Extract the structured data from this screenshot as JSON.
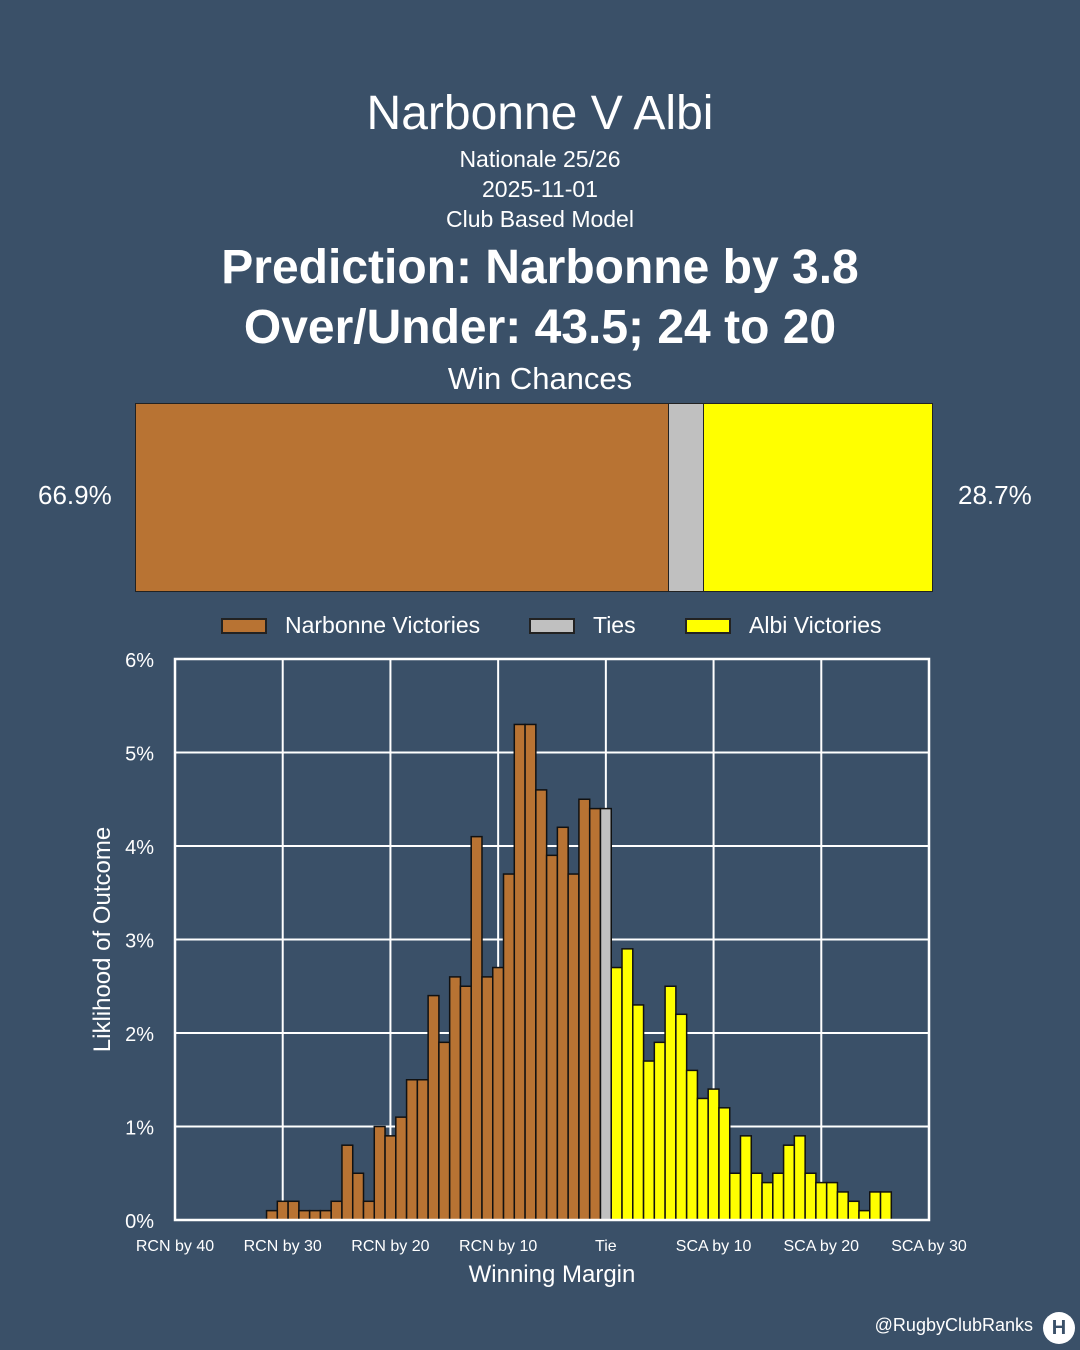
{
  "header": {
    "title": "Narbonne V Albi",
    "competition": "Nationale 25/26",
    "date": "2025-11-01",
    "model": "Club Based Model",
    "prediction": "Prediction: Narbonne by 3.8",
    "over_under": "Over/Under: 43.5; 24 to 20"
  },
  "win_chances": {
    "title": "Win Chances",
    "home_label": "66.9%",
    "away_label": "28.7%",
    "home": 66.9,
    "tie": 4.4,
    "away": 28.7
  },
  "legend": {
    "home": "Narbonne Victories",
    "tie": "Ties",
    "away": "Albi Victories"
  },
  "colors": {
    "background": "#3a5068",
    "home": "#b87333",
    "tie": "#c0c0c0",
    "away": "#ffff00"
  },
  "chart_data": {
    "type": "bar",
    "xlabel": "Winning Margin",
    "ylabel": "Liklihood of Outcome",
    "xlim": [
      -40,
      30
    ],
    "ylim": [
      0,
      6
    ],
    "x_ticks": [
      {
        "value": -40,
        "label": "RCN by 40"
      },
      {
        "value": -30,
        "label": "RCN by 30"
      },
      {
        "value": -20,
        "label": "RCN by 20"
      },
      {
        "value": -10,
        "label": "RCN by 10"
      },
      {
        "value": 0,
        "label": "Tie"
      },
      {
        "value": 10,
        "label": "SCA by 10"
      },
      {
        "value": 20,
        "label": "SCA by 20"
      },
      {
        "value": 30,
        "label": "SCA by 30"
      }
    ],
    "y_ticks": [
      {
        "value": 0,
        "label": "0%"
      },
      {
        "value": 1,
        "label": "1%"
      },
      {
        "value": 2,
        "label": "2%"
      },
      {
        "value": 3,
        "label": "3%"
      },
      {
        "value": 4,
        "label": "4%"
      },
      {
        "value": 5,
        "label": "5%"
      },
      {
        "value": 6,
        "label": "6%"
      }
    ],
    "grid": true,
    "series": [
      {
        "name": "Narbonne Victories",
        "x": [
          -31,
          -30,
          -29,
          -28,
          -27,
          -26,
          -25,
          -24,
          -23,
          -22,
          -21,
          -20,
          -19,
          -18,
          -17,
          -16,
          -15,
          -14,
          -13,
          -12,
          -11,
          -10,
          -9,
          -8,
          -7,
          -6,
          -5,
          -4,
          -3,
          -2,
          -1
        ],
        "values": [
          0.1,
          0.2,
          0.2,
          0.1,
          0.1,
          0.1,
          0.2,
          0.8,
          0.5,
          0.2,
          1.0,
          0.9,
          1.1,
          1.5,
          1.5,
          2.4,
          1.9,
          2.6,
          2.5,
          4.1,
          2.6,
          2.7,
          3.7,
          5.3,
          5.3,
          4.6,
          3.9,
          4.2,
          3.7,
          4.5,
          4.4
        ]
      },
      {
        "name": "Ties",
        "x": [
          0
        ],
        "values": [
          4.4
        ]
      },
      {
        "name": "Albi Victories",
        "x": [
          1,
          2,
          3,
          4,
          5,
          6,
          7,
          8,
          9,
          10,
          11,
          12,
          13,
          14,
          15,
          16,
          17,
          18,
          19,
          20,
          21,
          22,
          23,
          24,
          25,
          26
        ],
        "values": [
          2.7,
          2.9,
          2.3,
          1.7,
          1.9,
          2.5,
          2.2,
          1.6,
          1.3,
          1.4,
          1.2,
          0.5,
          0.9,
          0.5,
          0.4,
          0.5,
          0.8,
          0.9,
          0.5,
          0.4,
          0.4,
          0.3,
          0.2,
          0.1,
          0.3,
          0.3
        ]
      }
    ]
  },
  "watermark": "@RugbyClubRanks",
  "logo_text": "H"
}
